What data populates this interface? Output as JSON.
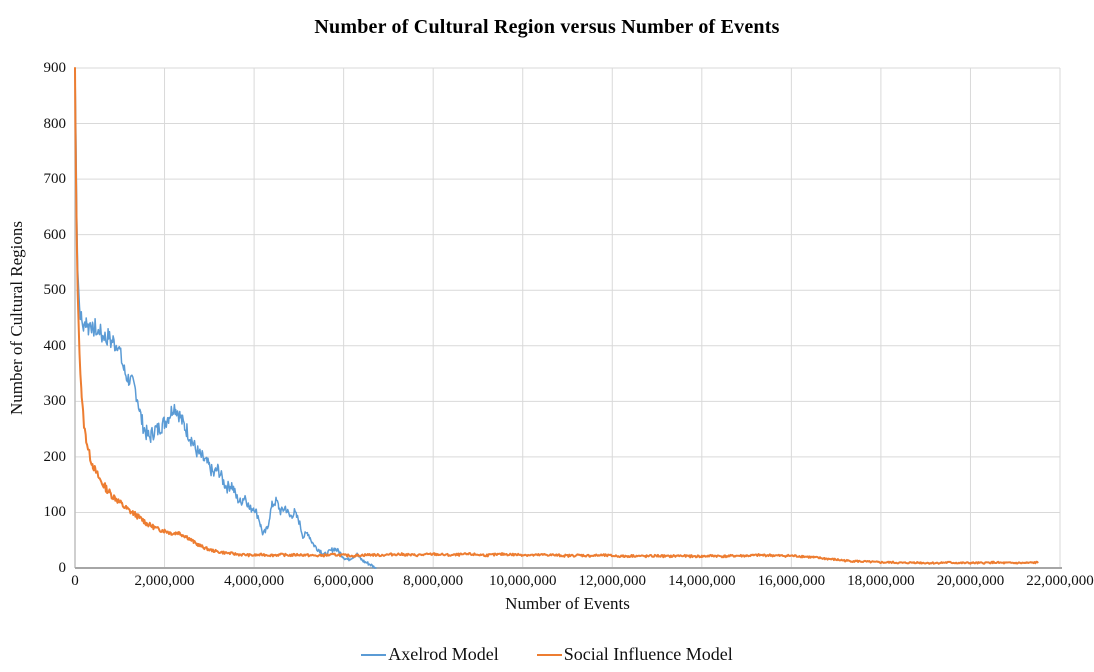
{
  "chart_data": {
    "type": "line",
    "title": "Number of Cultural Region versus Number of Events",
    "xlabel": "Number of Events",
    "ylabel": "Number of Cultural Regions",
    "xlim": [
      0,
      22000000
    ],
    "ylim": [
      0,
      900
    ],
    "grid": true,
    "legend_position": "bottom-center",
    "background": "#FFFFFF",
    "colors": {
      "grid": "#D9D9D9",
      "axis": "#BFBFBF",
      "axis_bottom": "#A6A6A6",
      "text": "#111111",
      "title": "#000000"
    },
    "x_ticks": [
      {
        "value": 0,
        "label": "0"
      },
      {
        "value": 2000000,
        "label": "2,000,000"
      },
      {
        "value": 4000000,
        "label": "4,000,000"
      },
      {
        "value": 6000000,
        "label": "6,000,000"
      },
      {
        "value": 8000000,
        "label": "8,000,000"
      },
      {
        "value": 10000000,
        "label": "10,000,000"
      },
      {
        "value": 12000000,
        "label": "12,000,000"
      },
      {
        "value": 14000000,
        "label": "14,000,000"
      },
      {
        "value": 16000000,
        "label": "16,000,000"
      },
      {
        "value": 18000000,
        "label": "18,000,000"
      },
      {
        "value": 20000000,
        "label": "20,000,000"
      },
      {
        "value": 22000000,
        "label": "22,000,000"
      }
    ],
    "y_ticks": [
      {
        "value": 0,
        "label": "0"
      },
      {
        "value": 100,
        "label": "100"
      },
      {
        "value": 200,
        "label": "200"
      },
      {
        "value": 300,
        "label": "300"
      },
      {
        "value": 400,
        "label": "400"
      },
      {
        "value": 500,
        "label": "500"
      },
      {
        "value": 600,
        "label": "600"
      },
      {
        "value": 700,
        "label": "700"
      },
      {
        "value": 800,
        "label": "800"
      },
      {
        "value": 900,
        "label": "900"
      }
    ],
    "series": [
      {
        "name": "Axelrod Model",
        "color": "#5B9BD5",
        "stroke_width": 1.5,
        "seed": 7,
        "noise_base": 3,
        "noise_scale": 0.05,
        "noise_max": 15,
        "points_millions": [
          [
            0,
            900
          ],
          [
            0.02,
            780
          ],
          [
            0.04,
            640
          ],
          [
            0.06,
            545
          ],
          [
            0.08,
            505
          ],
          [
            0.1,
            470
          ],
          [
            0.15,
            445
          ],
          [
            0.2,
            430
          ],
          [
            0.25,
            450
          ],
          [
            0.3,
            430
          ],
          [
            0.35,
            445
          ],
          [
            0.4,
            425
          ],
          [
            0.45,
            435
          ],
          [
            0.5,
            420
          ],
          [
            0.55,
            430
          ],
          [
            0.6,
            415
          ],
          [
            0.65,
            420
          ],
          [
            0.7,
            410
          ],
          [
            0.75,
            420
          ],
          [
            0.8,
            405
          ],
          [
            0.85,
            410
          ],
          [
            0.9,
            400
          ],
          [
            0.95,
            405
          ],
          [
            1.0,
            390
          ],
          [
            1.05,
            370
          ],
          [
            1.1,
            355
          ],
          [
            1.15,
            345
          ],
          [
            1.2,
            340
          ],
          [
            1.25,
            335
          ],
          [
            1.3,
            330
          ],
          [
            1.35,
            320
          ],
          [
            1.4,
            305
          ],
          [
            1.45,
            280
          ],
          [
            1.5,
            262
          ],
          [
            1.55,
            250
          ],
          [
            1.6,
            242
          ],
          [
            1.65,
            235
          ],
          [
            1.7,
            238
          ],
          [
            1.75,
            245
          ],
          [
            1.8,
            250
          ],
          [
            1.85,
            248
          ],
          [
            1.9,
            255
          ],
          [
            1.95,
            258
          ],
          [
            2.0,
            262
          ],
          [
            2.05,
            268
          ],
          [
            2.1,
            275
          ],
          [
            2.15,
            282
          ],
          [
            2.2,
            292
          ],
          [
            2.25,
            288
          ],
          [
            2.3,
            282
          ],
          [
            2.35,
            272
          ],
          [
            2.4,
            262
          ],
          [
            2.45,
            255
          ],
          [
            2.5,
            248
          ],
          [
            2.55,
            240
          ],
          [
            2.6,
            232
          ],
          [
            2.65,
            222
          ],
          [
            2.7,
            212
          ],
          [
            2.75,
            208
          ],
          [
            2.8,
            202
          ],
          [
            2.85,
            198
          ],
          [
            2.9,
            192
          ],
          [
            2.95,
            188
          ],
          [
            3.0,
            182
          ],
          [
            3.05,
            175
          ],
          [
            3.1,
            168
          ],
          [
            3.15,
            175
          ],
          [
            3.2,
            178
          ],
          [
            3.25,
            168
          ],
          [
            3.3,
            158
          ],
          [
            3.35,
            150
          ],
          [
            3.4,
            145
          ],
          [
            3.45,
            148
          ],
          [
            3.5,
            150
          ],
          [
            3.55,
            140
          ],
          [
            3.6,
            128
          ],
          [
            3.65,
            122
          ],
          [
            3.7,
            118
          ],
          [
            3.75,
            125
          ],
          [
            3.8,
            130
          ],
          [
            3.85,
            118
          ],
          [
            3.9,
            105
          ],
          [
            3.95,
            108
          ],
          [
            4.0,
            110
          ],
          [
            4.05,
            100
          ],
          [
            4.1,
            92
          ],
          [
            4.15,
            75
          ],
          [
            4.2,
            60
          ],
          [
            4.25,
            65
          ],
          [
            4.3,
            72
          ],
          [
            4.35,
            95
          ],
          [
            4.4,
            112
          ],
          [
            4.45,
            118
          ],
          [
            4.5,
            120
          ],
          [
            4.55,
            110
          ],
          [
            4.6,
            100
          ],
          [
            4.65,
            105
          ],
          [
            4.7,
            110
          ],
          [
            4.75,
            100
          ],
          [
            4.8,
            92
          ],
          [
            4.85,
            96
          ],
          [
            4.9,
            100
          ],
          [
            4.95,
            92
          ],
          [
            5.0,
            85
          ],
          [
            5.05,
            70
          ],
          [
            5.1,
            56
          ],
          [
            5.15,
            60
          ],
          [
            5.2,
            64
          ],
          [
            5.25,
            55
          ],
          [
            5.3,
            46
          ],
          [
            5.35,
            40
          ],
          [
            5.4,
            36
          ],
          [
            5.45,
            33
          ],
          [
            5.5,
            30
          ],
          [
            5.55,
            26
          ],
          [
            5.6,
            24
          ],
          [
            5.65,
            27
          ],
          [
            5.7,
            30
          ],
          [
            5.75,
            33
          ],
          [
            5.8,
            35
          ],
          [
            5.85,
            32
          ],
          [
            5.9,
            29
          ],
          [
            5.95,
            24
          ],
          [
            6.0,
            20
          ],
          [
            6.05,
            17
          ],
          [
            6.1,
            15
          ],
          [
            6.15,
            18
          ],
          [
            6.2,
            20
          ],
          [
            6.25,
            23
          ],
          [
            6.3,
            24
          ],
          [
            6.35,
            19
          ],
          [
            6.4,
            15
          ],
          [
            6.45,
            12
          ],
          [
            6.5,
            10
          ],
          [
            6.55,
            8
          ],
          [
            6.6,
            6
          ],
          [
            6.65,
            3
          ],
          [
            6.7,
            1
          ],
          [
            6.72,
            0
          ]
        ]
      },
      {
        "name": "Social Influence Model",
        "color": "#ED7D31",
        "stroke_width": 2,
        "seed": 13,
        "noise_base": 1.2,
        "noise_scale": 0.04,
        "noise_max": 7,
        "points_millions": [
          [
            0,
            900
          ],
          [
            0.01,
            800
          ],
          [
            0.02,
            710
          ],
          [
            0.04,
            590
          ],
          [
            0.06,
            500
          ],
          [
            0.08,
            435
          ],
          [
            0.1,
            390
          ],
          [
            0.12,
            355
          ],
          [
            0.15,
            310
          ],
          [
            0.18,
            278
          ],
          [
            0.2,
            258
          ],
          [
            0.25,
            232
          ],
          [
            0.3,
            212
          ],
          [
            0.35,
            196
          ],
          [
            0.4,
            185
          ],
          [
            0.45,
            176
          ],
          [
            0.5,
            168
          ],
          [
            0.55,
            160
          ],
          [
            0.6,
            153
          ],
          [
            0.65,
            148
          ],
          [
            0.7,
            143
          ],
          [
            0.75,
            138
          ],
          [
            0.8,
            133
          ],
          [
            0.85,
            129
          ],
          [
            0.9,
            126
          ],
          [
            0.95,
            122
          ],
          [
            1.0,
            118
          ],
          [
            1.05,
            114
          ],
          [
            1.1,
            110
          ],
          [
            1.15,
            107
          ],
          [
            1.2,
            104
          ],
          [
            1.25,
            101
          ],
          [
            1.3,
            99
          ],
          [
            1.35,
            96
          ],
          [
            1.4,
            93
          ],
          [
            1.45,
            90
          ],
          [
            1.5,
            87
          ],
          [
            1.55,
            84
          ],
          [
            1.6,
            80
          ],
          [
            1.65,
            78
          ],
          [
            1.7,
            76
          ],
          [
            1.75,
            74
          ],
          [
            1.8,
            72
          ],
          [
            1.85,
            70
          ],
          [
            1.9,
            69
          ],
          [
            1.95,
            68
          ],
          [
            2.0,
            67
          ],
          [
            2.05,
            66
          ],
          [
            2.1,
            64
          ],
          [
            2.15,
            63
          ],
          [
            2.2,
            62
          ],
          [
            2.25,
            63
          ],
          [
            2.3,
            64
          ],
          [
            2.35,
            62
          ],
          [
            2.4,
            60
          ],
          [
            2.45,
            58
          ],
          [
            2.5,
            56
          ],
          [
            2.55,
            53
          ],
          [
            2.6,
            50
          ],
          [
            2.65,
            47
          ],
          [
            2.7,
            44
          ],
          [
            2.75,
            42
          ],
          [
            2.8,
            40
          ],
          [
            2.85,
            38
          ],
          [
            2.9,
            36
          ],
          [
            3.0,
            33
          ],
          [
            3.1,
            31
          ],
          [
            3.2,
            29
          ],
          [
            3.3,
            28
          ],
          [
            3.4,
            27
          ],
          [
            3.5,
            26
          ],
          [
            3.6,
            25
          ],
          [
            3.7,
            24
          ],
          [
            3.8,
            24
          ],
          [
            3.9,
            23
          ],
          [
            4.0,
            23
          ],
          [
            4.2,
            24
          ],
          [
            4.4,
            23
          ],
          [
            4.6,
            24
          ],
          [
            4.8,
            23
          ],
          [
            5.0,
            24
          ],
          [
            5.2,
            23
          ],
          [
            5.4,
            22
          ],
          [
            5.6,
            23
          ],
          [
            5.8,
            24
          ],
          [
            6.0,
            23
          ],
          [
            6.2,
            22
          ],
          [
            6.4,
            23
          ],
          [
            6.6,
            24
          ],
          [
            6.8,
            23
          ],
          [
            7.0,
            24
          ],
          [
            7.2,
            25
          ],
          [
            7.4,
            24
          ],
          [
            7.6,
            23
          ],
          [
            7.8,
            24
          ],
          [
            8.0,
            25
          ],
          [
            8.2,
            24
          ],
          [
            8.4,
            23
          ],
          [
            8.6,
            24
          ],
          [
            8.8,
            25
          ],
          [
            9.0,
            24
          ],
          [
            9.2,
            23
          ],
          [
            9.4,
            24
          ],
          [
            9.6,
            25
          ],
          [
            9.8,
            24
          ],
          [
            10.0,
            24
          ],
          [
            10.25,
            23
          ],
          [
            10.5,
            24
          ],
          [
            10.75,
            23
          ],
          [
            11.0,
            22
          ],
          [
            11.25,
            23
          ],
          [
            11.5,
            22
          ],
          [
            11.75,
            23
          ],
          [
            12.0,
            22
          ],
          [
            12.25,
            21
          ],
          [
            12.5,
            22
          ],
          [
            12.75,
            21
          ],
          [
            13.0,
            22
          ],
          [
            13.25,
            21
          ],
          [
            13.5,
            22
          ],
          [
            13.75,
            21
          ],
          [
            14.0,
            21
          ],
          [
            14.25,
            22
          ],
          [
            14.5,
            21
          ],
          [
            14.75,
            22
          ],
          [
            15.0,
            22
          ],
          [
            15.25,
            23
          ],
          [
            15.5,
            23
          ],
          [
            15.75,
            22
          ],
          [
            16.0,
            22
          ],
          [
            16.25,
            21
          ],
          [
            16.5,
            19
          ],
          [
            16.75,
            17
          ],
          [
            17.0,
            15
          ],
          [
            17.25,
            13
          ],
          [
            17.5,
            12
          ],
          [
            17.75,
            11
          ],
          [
            18.0,
            10
          ],
          [
            18.25,
            10
          ],
          [
            18.5,
            9
          ],
          [
            18.75,
            10
          ],
          [
            19.0,
            9
          ],
          [
            19.25,
            9
          ],
          [
            19.5,
            10
          ],
          [
            19.75,
            9
          ],
          [
            20.0,
            9
          ],
          [
            20.25,
            9
          ],
          [
            20.5,
            10
          ],
          [
            20.75,
            9
          ],
          [
            21.0,
            9
          ],
          [
            21.25,
            9
          ],
          [
            21.5,
            10
          ]
        ]
      }
    ]
  }
}
